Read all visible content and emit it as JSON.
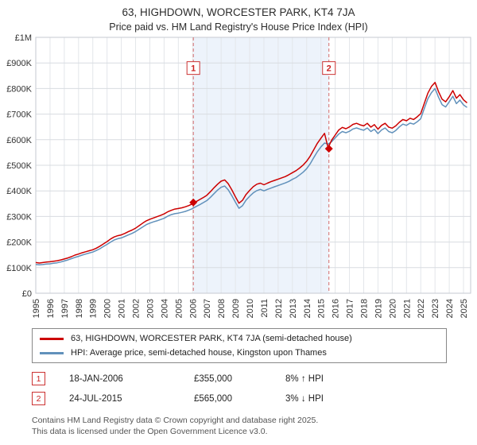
{
  "title": "63, HIGHDOWN, WORCESTER PARK, KT4 7JA",
  "subtitle": "Price paid vs. HM Land Registry's House Price Index (HPI)",
  "chart_data": {
    "type": "line",
    "x_range": [
      1995,
      2025.5
    ],
    "y_range": [
      0,
      1000000
    ],
    "x_ticks": [
      1995,
      1996,
      1997,
      1998,
      1999,
      2000,
      2001,
      2002,
      2003,
      2004,
      2005,
      2006,
      2007,
      2008,
      2009,
      2010,
      2011,
      2012,
      2013,
      2014,
      2015,
      2016,
      2017,
      2018,
      2019,
      2020,
      2021,
      2022,
      2023,
      2024,
      2025
    ],
    "y_ticks": [
      {
        "value": 0,
        "label": "£0"
      },
      {
        "value": 100000,
        "label": "£100K"
      },
      {
        "value": 200000,
        "label": "£200K"
      },
      {
        "value": 300000,
        "label": "£300K"
      },
      {
        "value": 400000,
        "label": "£400K"
      },
      {
        "value": 500000,
        "label": "£500K"
      },
      {
        "value": 600000,
        "label": "£600K"
      },
      {
        "value": 700000,
        "label": "£700K"
      },
      {
        "value": 800000,
        "label": "£800K"
      },
      {
        "value": 900000,
        "label": "£900K"
      },
      {
        "value": 1000000,
        "label": "£1M"
      }
    ],
    "grid": true,
    "legend_position": "bottom",
    "shaded_region": {
      "from": 2006.05,
      "to": 2015.56,
      "color": "#edf3fb"
    },
    "x_start": 1995,
    "x_step": 0.25,
    "y_values_unit": "£1000",
    "series": [
      {
        "name": "63, HIGHDOWN, WORCESTER PARK, KT4 7JA (semi-detached house)",
        "color": "#cc0000",
        "values": [
          120,
          118,
          120,
          122,
          123,
          125,
          127,
          130,
          134,
          138,
          143,
          149,
          153,
          158,
          162,
          166,
          170,
          176,
          184,
          193,
          202,
          212,
          220,
          225,
          228,
          234,
          241,
          247,
          254,
          264,
          274,
          283,
          289,
          294,
          299,
          304,
          310,
          318,
          324,
          329,
          331,
          334,
          338,
          343,
          350,
          358,
          366,
          374,
          383,
          397,
          412,
          426,
          438,
          443,
          428,
          404,
          377,
          352,
          363,
          386,
          402,
          416,
          426,
          430,
          424,
          430,
          436,
          441,
          446,
          451,
          456,
          463,
          471,
          479,
          489,
          501,
          516,
          536,
          561,
          586,
          606,
          625,
          568,
          598,
          618,
          638,
          648,
          643,
          650,
          660,
          664,
          658,
          654,
          664,
          649,
          659,
          641,
          656,
          664,
          649,
          645,
          654,
          668,
          679,
          674,
          684,
          679,
          689,
          702,
          742,
          782,
          808,
          824,
          788,
          758,
          748,
          768,
          792,
          762,
          776,
          756,
          744
        ]
      },
      {
        "name": "HPI: Average price, semi-detached house, Kingston upon Thames",
        "color": "#6191bb",
        "values": [
          112,
          111,
          112,
          114,
          115,
          117,
          119,
          122,
          126,
          130,
          135,
          140,
          144,
          149,
          153,
          157,
          161,
          167,
          174,
          183,
          191,
          200,
          208,
          213,
          216,
          222,
          228,
          234,
          241,
          250,
          259,
          268,
          274,
          279,
          283,
          288,
          293,
          301,
          307,
          311,
          313,
          316,
          320,
          325,
          331,
          339,
          346,
          354,
          362,
          375,
          389,
          403,
          414,
          419,
          404,
          381,
          356,
          332,
          342,
          364,
          379,
          392,
          401,
          406,
          400,
          406,
          411,
          416,
          421,
          426,
          431,
          437,
          445,
          452,
          462,
          473,
          487,
          506,
          530,
          553,
          572,
          587,
          583,
          592,
          607,
          622,
          632,
          627,
          633,
          642,
          646,
          641,
          637,
          646,
          632,
          641,
          624,
          638,
          646,
          632,
          627,
          636,
          650,
          661,
          656,
          665,
          661,
          670,
          682,
          722,
          760,
          784,
          800,
          766,
          737,
          728,
          748,
          770,
          741,
          755,
          736,
          726
        ]
      }
    ],
    "markers": [
      {
        "label": "1",
        "x": 2006.05,
        "price_gbp": 355000,
        "flag_y_gbp": 880000
      },
      {
        "label": "2",
        "x": 2015.56,
        "price_gbp": 565000,
        "flag_y_gbp": 880000
      }
    ]
  },
  "annotations": [
    {
      "num": "1",
      "date": "18-JAN-2006",
      "price": "£355,000",
      "hpi": "8% ↑ HPI"
    },
    {
      "num": "2",
      "date": "24-JUL-2015",
      "price": "£565,000",
      "hpi": "3% ↓ HPI"
    }
  ],
  "footer": {
    "line1": "Contains HM Land Registry data © Crown copyright and database right 2025.",
    "line2": "This data is licensed under the Open Government Licence v3.0."
  }
}
